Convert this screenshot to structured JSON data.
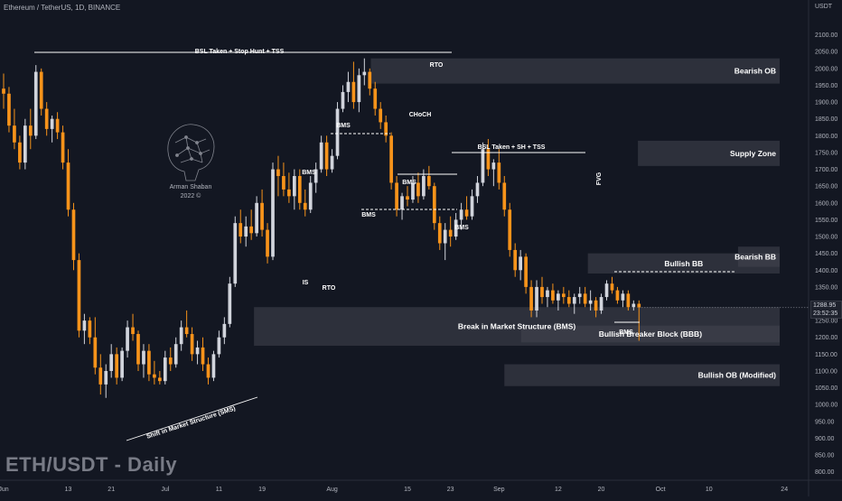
{
  "header": {
    "pair": "Ethereum / TetherUS, 1D, BINANCE",
    "big_title": "ETH/USDT - Daily",
    "currency": "USDT"
  },
  "watermark": {
    "name": "Arman Shaban",
    "year": "2022 ©"
  },
  "price_tag": {
    "price": "1288.95",
    "countdown": "23:52:35"
  },
  "colors": {
    "background": "#131722",
    "up": "#d1d4dc",
    "down": "#f7931a",
    "zone": "#434651",
    "grid": "#1e222d"
  },
  "chart_data": {
    "type": "candlestick",
    "ylim": [
      775,
      2150
    ],
    "y_ticks": [
      800,
      850,
      900,
      950,
      1000,
      1050,
      1100,
      1150,
      1200,
      1250,
      1300,
      1350,
      1400,
      1450,
      1500,
      1550,
      1600,
      1650,
      1700,
      1750,
      1800,
      1850,
      1900,
      1950,
      2000,
      2050,
      2100
    ],
    "x_ticks": [
      {
        "label": "Jun",
        "idx": 0
      },
      {
        "label": "13",
        "idx": 12
      },
      {
        "label": "21",
        "idx": 20
      },
      {
        "label": "Jul",
        "idx": 30
      },
      {
        "label": "11",
        "idx": 40
      },
      {
        "label": "19",
        "idx": 48
      },
      {
        "label": "Aug",
        "idx": 61
      },
      {
        "label": "15",
        "idx": 75
      },
      {
        "label": "23",
        "idx": 83
      },
      {
        "label": "Sep",
        "idx": 92
      },
      {
        "label": "12",
        "idx": 103
      },
      {
        "label": "20",
        "idx": 111
      },
      {
        "label": "Oct",
        "idx": 122
      },
      {
        "label": "10",
        "idx": 131
      },
      {
        "label": "24",
        "idx": 145
      }
    ],
    "candles": [
      [
        1940,
        1985,
        1880,
        1925
      ],
      [
        1925,
        1945,
        1810,
        1830
      ],
      [
        1830,
        1880,
        1760,
        1780
      ],
      [
        1780,
        1800,
        1700,
        1720
      ],
      [
        1720,
        1850,
        1700,
        1830
      ],
      [
        1830,
        1880,
        1760,
        1800
      ],
      [
        1800,
        2010,
        1790,
        1990
      ],
      [
        1990,
        2000,
        1860,
        1880
      ],
      [
        1880,
        1900,
        1800,
        1820
      ],
      [
        1820,
        1860,
        1780,
        1850
      ],
      [
        1850,
        1870,
        1790,
        1810
      ],
      [
        1810,
        1830,
        1700,
        1720
      ],
      [
        1720,
        1760,
        1560,
        1580
      ],
      [
        1580,
        1600,
        1400,
        1430
      ],
      [
        1430,
        1450,
        1200,
        1220
      ],
      [
        1220,
        1270,
        1180,
        1250
      ],
      [
        1250,
        1260,
        1180,
        1200
      ],
      [
        1200,
        1260,
        1090,
        1110
      ],
      [
        1110,
        1150,
        1030,
        1060
      ],
      [
        1060,
        1120,
        1020,
        1100
      ],
      [
        1100,
        1180,
        1080,
        1150
      ],
      [
        1150,
        1170,
        1060,
        1080
      ],
      [
        1080,
        1170,
        1070,
        1160
      ],
      [
        1160,
        1250,
        1140,
        1230
      ],
      [
        1230,
        1270,
        1190,
        1210
      ],
      [
        1210,
        1220,
        1100,
        1120
      ],
      [
        1120,
        1180,
        1080,
        1160
      ],
      [
        1160,
        1180,
        1070,
        1090
      ],
      [
        1090,
        1130,
        1060,
        1080
      ],
      [
        1080,
        1100,
        1060,
        1070
      ],
      [
        1070,
        1160,
        1060,
        1140
      ],
      [
        1140,
        1170,
        1100,
        1120
      ],
      [
        1120,
        1200,
        1110,
        1180
      ],
      [
        1180,
        1250,
        1160,
        1230
      ],
      [
        1230,
        1280,
        1200,
        1210
      ],
      [
        1210,
        1230,
        1130,
        1150
      ],
      [
        1150,
        1190,
        1120,
        1170
      ],
      [
        1170,
        1200,
        1100,
        1120
      ],
      [
        1120,
        1140,
        1060,
        1080
      ],
      [
        1080,
        1160,
        1070,
        1150
      ],
      [
        1150,
        1220,
        1140,
        1200
      ],
      [
        1200,
        1260,
        1180,
        1240
      ],
      [
        1240,
        1380,
        1230,
        1360
      ],
      [
        1360,
        1560,
        1350,
        1540
      ],
      [
        1540,
        1580,
        1480,
        1500
      ],
      [
        1500,
        1560,
        1470,
        1530
      ],
      [
        1530,
        1580,
        1490,
        1510
      ],
      [
        1510,
        1620,
        1500,
        1600
      ],
      [
        1600,
        1640,
        1500,
        1520
      ],
      [
        1520,
        1540,
        1420,
        1440
      ],
      [
        1440,
        1720,
        1430,
        1700
      ],
      [
        1700,
        1740,
        1620,
        1680
      ],
      [
        1680,
        1720,
        1620,
        1640
      ],
      [
        1640,
        1690,
        1600,
        1620
      ],
      [
        1620,
        1700,
        1580,
        1680
      ],
      [
        1680,
        1700,
        1580,
        1600
      ],
      [
        1600,
        1640,
        1560,
        1580
      ],
      [
        1580,
        1680,
        1570,
        1660
      ],
      [
        1660,
        1720,
        1630,
        1700
      ],
      [
        1700,
        1800,
        1690,
        1780
      ],
      [
        1780,
        1800,
        1680,
        1700
      ],
      [
        1700,
        1760,
        1690,
        1740
      ],
      [
        1740,
        1900,
        1730,
        1880
      ],
      [
        1880,
        1950,
        1870,
        1930
      ],
      [
        1930,
        1990,
        1900,
        1960
      ],
      [
        1960,
        2020,
        1880,
        1900
      ],
      [
        1900,
        2000,
        1870,
        1980
      ],
      [
        1980,
        2030,
        1950,
        1990
      ],
      [
        1990,
        2000,
        1920,
        1940
      ],
      [
        1940,
        1960,
        1860,
        1880
      ],
      [
        1880,
        1900,
        1820,
        1840
      ],
      [
        1840,
        1860,
        1780,
        1800
      ],
      [
        1800,
        1810,
        1640,
        1660
      ],
      [
        1660,
        1680,
        1560,
        1580
      ],
      [
        1580,
        1630,
        1550,
        1620
      ],
      [
        1620,
        1650,
        1590,
        1610
      ],
      [
        1610,
        1680,
        1600,
        1660
      ],
      [
        1660,
        1690,
        1600,
        1620
      ],
      [
        1620,
        1700,
        1610,
        1680
      ],
      [
        1680,
        1710,
        1640,
        1650
      ],
      [
        1650,
        1660,
        1520,
        1540
      ],
      [
        1540,
        1560,
        1460,
        1480
      ],
      [
        1480,
        1540,
        1430,
        1520
      ],
      [
        1520,
        1560,
        1470,
        1500
      ],
      [
        1500,
        1570,
        1490,
        1550
      ],
      [
        1550,
        1600,
        1520,
        1580
      ],
      [
        1580,
        1620,
        1550,
        1560
      ],
      [
        1560,
        1640,
        1550,
        1620
      ],
      [
        1620,
        1680,
        1600,
        1660
      ],
      [
        1660,
        1780,
        1650,
        1760
      ],
      [
        1760,
        1790,
        1680,
        1700
      ],
      [
        1700,
        1730,
        1650,
        1720
      ],
      [
        1720,
        1760,
        1640,
        1660
      ],
      [
        1660,
        1680,
        1560,
        1580
      ],
      [
        1580,
        1600,
        1440,
        1460
      ],
      [
        1460,
        1480,
        1380,
        1400
      ],
      [
        1400,
        1460,
        1370,
        1440
      ],
      [
        1440,
        1450,
        1330,
        1350
      ],
      [
        1350,
        1370,
        1260,
        1280
      ],
      [
        1280,
        1370,
        1260,
        1350
      ],
      [
        1350,
        1380,
        1300,
        1320
      ],
      [
        1320,
        1350,
        1290,
        1340
      ],
      [
        1340,
        1360,
        1300,
        1310
      ],
      [
        1310,
        1340,
        1280,
        1330
      ],
      [
        1330,
        1350,
        1300,
        1320
      ],
      [
        1320,
        1340,
        1290,
        1300
      ],
      [
        1300,
        1330,
        1270,
        1320
      ],
      [
        1320,
        1350,
        1300,
        1330
      ],
      [
        1330,
        1350,
        1290,
        1300
      ],
      [
        1300,
        1340,
        1280,
        1310
      ],
      [
        1310,
        1320,
        1260,
        1280
      ],
      [
        1280,
        1330,
        1270,
        1320
      ],
      [
        1320,
        1370,
        1310,
        1360
      ],
      [
        1360,
        1380,
        1330,
        1340
      ],
      [
        1340,
        1350,
        1300,
        1310
      ],
      [
        1310,
        1340,
        1290,
        1330
      ],
      [
        1330,
        1340,
        1280,
        1290
      ],
      [
        1290,
        1310,
        1280,
        1300
      ],
      [
        1300,
        1310,
        1190,
        1289
      ]
    ],
    "zones": [
      {
        "label": "Bearish OB",
        "from": 22,
        "y1": 1955,
        "y2": 2030,
        "label_x": 0.92
      },
      {
        "label": "Supply Zone",
        "from": 38,
        "y1": 1710,
        "y2": 1785,
        "label_x": 0.92
      },
      {
        "label": "Bearish BB",
        "from": 44,
        "y1": 1410,
        "y2": 1470,
        "label_x": 0.92
      },
      {
        "label": "Bullish BB",
        "from": 35,
        "y1": 1390,
        "y2": 1450,
        "label_x": 0.5
      },
      {
        "label": "Break in Market Structure (BMS)",
        "from": 15,
        "y1": 1175,
        "y2": 1290,
        "label_x": 0.5
      },
      {
        "label": "Bullish Breaker Block (BBB)",
        "from": 31,
        "y1": 1185,
        "y2": 1235,
        "label_x": 0.5
      },
      {
        "label": "Bullish OB (Modified)",
        "from": 30,
        "y1": 1055,
        "y2": 1120,
        "label_x": 0.92
      }
    ],
    "annotations": [
      "BSL Taken + Stop Hunt + TSS",
      "RTO",
      "CHoCH",
      "BMS",
      "BMS",
      "BMS",
      "BMS",
      "BMS",
      "BMS",
      "BSL Taken + SH + TSS",
      "FVG",
      "IS",
      "RTO",
      "Shift in Market Structure (SMS)"
    ]
  }
}
